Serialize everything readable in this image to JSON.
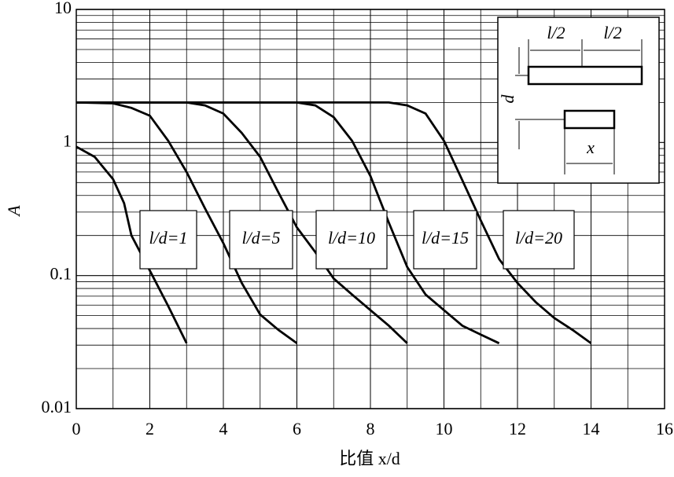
{
  "chart_data": {
    "type": "line",
    "xlabel": "比值 x/d",
    "ylabel": "A",
    "log_y": true,
    "grid": true,
    "xlim": [
      0,
      16
    ],
    "xticks": [
      0,
      2,
      4,
      6,
      8,
      10,
      12,
      14,
      16
    ],
    "x_minor_ticks": [
      1,
      3,
      5,
      7,
      9,
      11,
      13,
      15
    ],
    "ylim": [
      0.01,
      10
    ],
    "yticks": [
      0.01,
      0.1,
      1,
      10
    ],
    "y_minor_ticks": [
      0.02,
      0.03,
      0.04,
      0.05,
      0.06,
      0.07,
      0.08,
      0.09,
      0.2,
      0.3,
      0.4,
      0.5,
      0.6,
      0.7,
      0.8,
      0.9,
      2,
      3,
      4,
      5,
      6,
      7,
      8,
      9
    ],
    "series": [
      {
        "name": "l/d=1",
        "color": "#000000",
        "x": [
          0,
          0.5,
          1,
          1.3,
          1.5,
          2,
          2.5,
          3
        ],
        "values": [
          0.93,
          0.78,
          0.53,
          0.35,
          0.2,
          0.109,
          0.059,
          0.031
        ]
      },
      {
        "name": "l/d=5",
        "color": "#000000",
        "x": [
          0,
          1,
          1.5,
          2,
          2.5,
          3,
          3.5,
          4,
          4.5,
          5,
          5.5,
          6
        ],
        "values": [
          2,
          1.97,
          1.82,
          1.59,
          1.03,
          0.6,
          0.32,
          0.175,
          0.088,
          0.051,
          0.039,
          0.031
        ]
      },
      {
        "name": "l/d=10",
        "color": "#000000",
        "x": [
          0,
          3,
          3.5,
          4,
          4.5,
          5,
          5.5,
          6,
          6.5,
          7,
          7.5,
          8,
          8.5,
          9
        ],
        "values": [
          2,
          2,
          1.9,
          1.65,
          1.18,
          0.78,
          0.42,
          0.23,
          0.15,
          0.095,
          0.072,
          0.055,
          0.042,
          0.031
        ]
      },
      {
        "name": "l/d=15",
        "color": "#000000",
        "x": [
          0,
          6,
          6.5,
          7,
          7.5,
          8,
          8.5,
          9,
          9.5,
          10,
          10.5,
          11,
          11.5
        ],
        "values": [
          2,
          2,
          1.9,
          1.55,
          1.03,
          0.56,
          0.25,
          0.116,
          0.072,
          0.055,
          0.042,
          0.036,
          0.031
        ]
      },
      {
        "name": "l/d=20",
        "color": "#000000",
        "x": [
          0,
          8.5,
          9,
          9.5,
          10,
          10.5,
          11,
          11.5,
          12,
          12.5,
          13,
          13.5,
          14
        ],
        "values": [
          2,
          2,
          1.9,
          1.65,
          1.03,
          0.52,
          0.26,
          0.133,
          0.088,
          0.063,
          0.048,
          0.039,
          0.031
        ]
      }
    ],
    "inset": {
      "labels": [
        "l/2",
        "l/2",
        "d",
        "x"
      ]
    }
  }
}
